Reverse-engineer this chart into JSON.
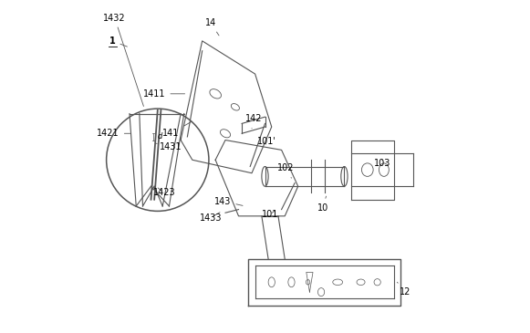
{
  "title": "",
  "background_color": "#ffffff",
  "figure_width": 5.81,
  "figure_height": 3.65,
  "dpi": 100,
  "line_color": "#555555",
  "line_width": 0.8,
  "label_fontsize": 7
}
